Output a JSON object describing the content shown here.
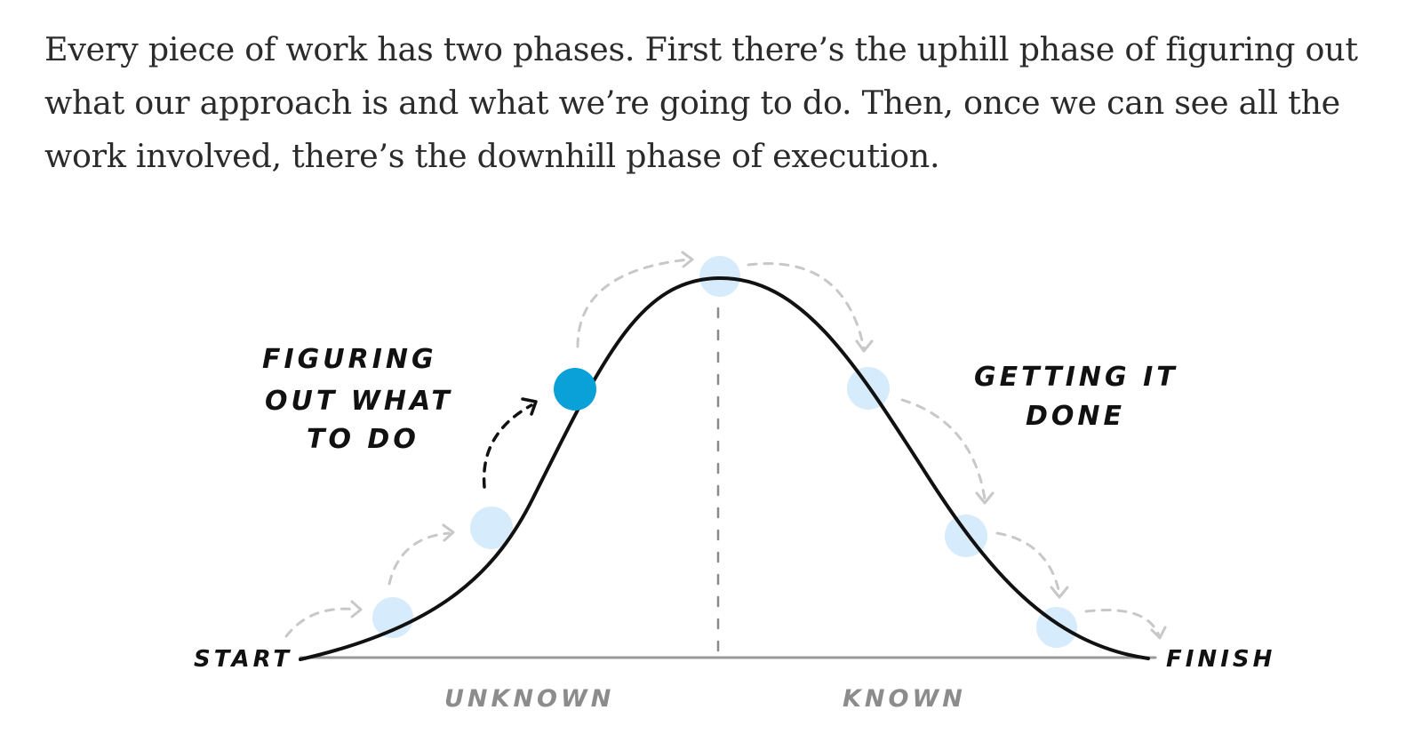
{
  "article": {
    "paragraph": "Every piece of work has two phases. First there’s the uphill phase of figuring out what our approach is and what we’re going to do. Then, once we can see all the work involved, there’s the downhill phase of execution."
  },
  "hill_chart": {
    "label_start": "START",
    "label_finish": "FINISH",
    "label_unknown": "UNKNOWN",
    "label_known": "KNOWN",
    "uphill_caption": [
      "FIGURING",
      "OUT WHAT",
      "TO DO"
    ],
    "downhill_caption": [
      "GETTING IT",
      "DONE"
    ],
    "colors": {
      "curve": "#111111",
      "baseline": "#9a9a9a",
      "active_dot": "#0aa0d8",
      "ghost_dot": "#d6ebfb",
      "ghost_arrow": "#c8c8c8",
      "divider": "#8a8a8a",
      "faint_label": "#8c8c8c"
    }
  }
}
